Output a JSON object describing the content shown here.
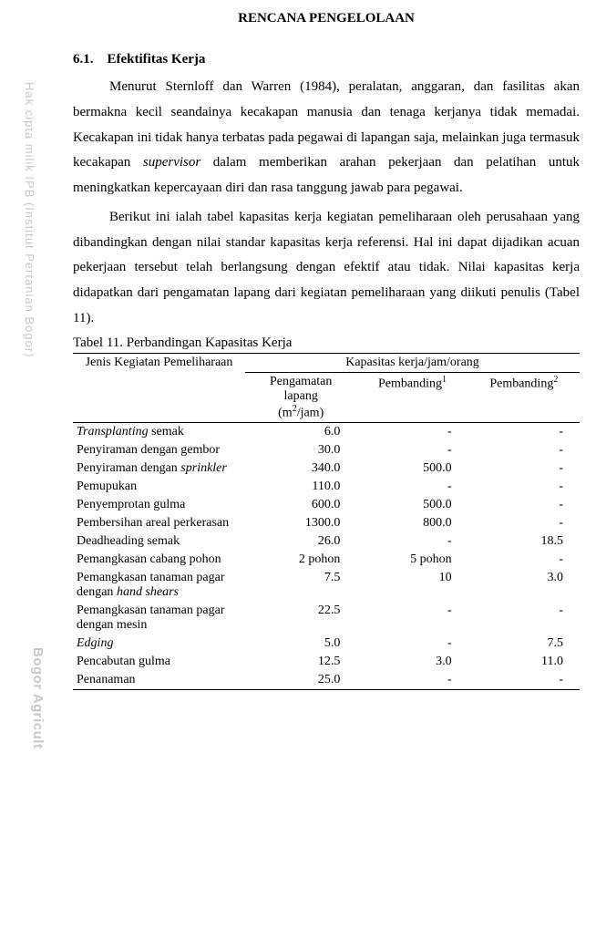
{
  "watermark_text1": "Hak cipta milik IPB (Institut Pertanian Bogor)",
  "watermark_text2": "Bogor Agricult",
  "chapter_title": "RENCANA PENGELOLAAN",
  "section_number": "6.1.",
  "section_title": "Efektifitas Kerja",
  "para1_a": "Menurut Sternloff dan Warren (1984), peralatan, anggaran, dan fasilitas akan bermakna kecil seandainya kecakapan manusia dan tenaga kerjanya tidak memadai. Kecakapan ini tidak hanya terbatas pada pegawai di lapangan saja, melainkan juga termasuk kecakapan ",
  "para1_italic": "supervisor",
  "para1_b": " dalam memberikan arahan pekerjaan dan pelatihan untuk meningkatkan kepercayaan diri dan rasa tanggung jawab para pegawai.",
  "para2": "Berikut ini ialah tabel kapasitas kerja kegiatan pemeliharaan oleh perusahaan yang dibandingkan dengan nilai standar kapasitas kerja referensi. Hal ini dapat dijadikan acuan pekerjaan tersebut telah berlangsung dengan efektif atau tidak. Nilai kapasitas kerja didapatkan dari pengamatan lapang dari kegiatan pemeliharaan yang diikuti penulis (Tabel 11).",
  "table_caption": "Tabel 11. Perbandingan Kapasitas Kerja",
  "table": {
    "header_left": "Jenis Kegiatan Pemeliharaan",
    "header_right": "Kapasitas kerja/jam/orang",
    "sub_obs_line1": "Pengamatan",
    "sub_obs_line2": "lapang",
    "sub_obs_unit_pre": "(m",
    "sub_obs_unit_sup": "2",
    "sub_obs_unit_post": "/jam)",
    "sub_p1": "Pembanding",
    "sub_p1_sup": "1",
    "sub_p2": "Pembanding",
    "sub_p2_sup": "2",
    "rows": [
      {
        "activity_pre_italic": "Transplanting",
        "activity_post": " semak",
        "obs": "6.0",
        "p1": "-",
        "p2": "-"
      },
      {
        "activity": "Penyiraman dengan gembor",
        "obs": "30.0",
        "p1": "-",
        "p2": "-"
      },
      {
        "activity_pre": "Penyiraman dengan ",
        "activity_italic": "sprinkler",
        "obs": "340.0",
        "p1": "500.0",
        "p2": "-"
      },
      {
        "activity": "Pemupukan",
        "obs": "110.0",
        "p1": "-",
        "p2": "-"
      },
      {
        "activity": "Penyemprotan gulma",
        "obs": "600.0",
        "p1": "500.0",
        "p2": "-"
      },
      {
        "activity": "Pembersihan areal perkerasan",
        "obs": "1300.0",
        "p1": "800.0",
        "p2": "-"
      },
      {
        "activity": "Deadheading semak",
        "obs": "26.0",
        "p1": "-",
        "p2": "18.5"
      },
      {
        "activity": "Pemangkasan cabang pohon",
        "obs": "2 pohon",
        "p1": "5 pohon",
        "p2": "-"
      },
      {
        "activity_pre": "Pemangkasan tanaman pagar dengan ",
        "activity_italic": "hand shears",
        "obs": "7.5",
        "p1": "10",
        "p2": "3.0"
      },
      {
        "activity": "Pemangkasan tanaman pagar dengan mesin",
        "obs": "22.5",
        "p1": "-",
        "p2": "-"
      },
      {
        "activity_italic_only": "Edging",
        "obs": "5.0",
        "p1": "-",
        "p2": "7.5"
      },
      {
        "activity": "Pencabutan gulma",
        "obs": "12.5",
        "p1": "3.0",
        "p2": "11.0"
      },
      {
        "activity": "Penanaman",
        "obs": "25.0",
        "p1": "-",
        "p2": "-"
      }
    ]
  }
}
